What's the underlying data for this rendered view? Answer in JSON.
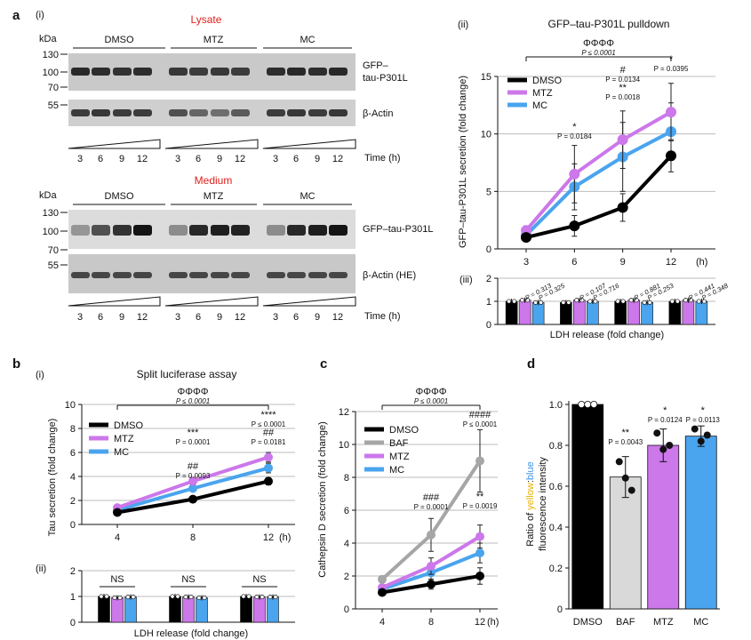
{
  "panel_letters": {
    "a": "a",
    "b": "b",
    "c": "c",
    "d": "d"
  },
  "panel_a": {
    "sub_i": "(i)",
    "sub_ii": "(ii)",
    "sub_iii": "(iii)",
    "lysate": {
      "title": "Lysate",
      "kda": "kDa",
      "markers": [
        "130",
        "100",
        "70",
        "55"
      ],
      "groups": [
        "DMSO",
        "MTZ",
        "MC"
      ],
      "labels": [
        "GFP–",
        "tau-P301L",
        "β-Actin"
      ]
    },
    "medium": {
      "title": "Medium",
      "kda": "kDa",
      "markers": [
        "130",
        "100",
        "70",
        "55"
      ],
      "groups": [
        "DMSO",
        "MTZ",
        "MC"
      ],
      "labels": [
        "GFP–tau-P301L",
        "β-Actin (HE)"
      ]
    },
    "timepoints": [
      "3",
      "6",
      "9",
      "12"
    ],
    "time_label": "Time (h)"
  },
  "chart_data": [
    {
      "type": "line",
      "id": "a_ii",
      "title": "GFP–tau-P301L pulldown",
      "xlabel": "",
      "ylabel": "GFP–tau-P301L secretion (fold change)",
      "x": [
        3,
        6,
        9,
        12
      ],
      "x_unit": "(h)",
      "ylim": [
        0,
        15
      ],
      "yticks": [
        0,
        5,
        10,
        15
      ],
      "legend": [
        "DMSO",
        "MTZ",
        "MC"
      ],
      "series": [
        {
          "name": "DMSO",
          "values": [
            1.0,
            2.0,
            3.6,
            8.1
          ],
          "errors": [
            0.3,
            0.9,
            1.2,
            1.4
          ]
        },
        {
          "name": "MTZ",
          "values": [
            1.6,
            6.5,
            9.5,
            11.9
          ],
          "errors": [
            0.4,
            2.5,
            2.5,
            2.5
          ]
        },
        {
          "name": "MC",
          "values": [
            1.2,
            5.4,
            8.0,
            10.2
          ],
          "errors": [
            0.3,
            2.0,
            3.0,
            2.5
          ]
        }
      ],
      "bracket_symbol": "ΦΦΦΦ",
      "bracket_p": "P ≤ 0.0001",
      "annotations": [
        {
          "x": 6,
          "lines": [
            "*",
            "P = 0.0184"
          ]
        },
        {
          "x": 9,
          "lines": [
            "#",
            "P = 0.0134",
            "**",
            "P = 0.0018"
          ]
        },
        {
          "x": 12,
          "lines": [
            "*",
            "P = 0.0395"
          ]
        }
      ]
    },
    {
      "type": "bar",
      "id": "a_iii",
      "xlabel": "LDH release (fold change)",
      "ylim": [
        0,
        2
      ],
      "yticks": [
        0,
        1,
        2
      ],
      "categories": [
        "3",
        "6",
        "9",
        "12"
      ],
      "series": [
        {
          "name": "DMSO",
          "values": [
            1.0,
            0.95,
            1.0,
            1.0
          ]
        },
        {
          "name": "MTZ",
          "values": [
            1.05,
            1.05,
            1.05,
            1.05
          ]
        },
        {
          "name": "MC",
          "values": [
            0.95,
            1.0,
            0.95,
            1.0
          ]
        }
      ],
      "p_labels": [
        "P = 0.313",
        "P = 0.325",
        "P = 0.107",
        "P = 0.716",
        "P = 0.881",
        "P = 0.253",
        "P = 0.441",
        "P = 0.348"
      ]
    },
    {
      "type": "line",
      "id": "b_i",
      "title": "Split luciferase assay",
      "ylabel": "Tau secretion (fold change)",
      "x": [
        4,
        8,
        12
      ],
      "x_unit": "(h)",
      "ylim": [
        0,
        10
      ],
      "yticks": [
        0,
        2,
        4,
        6,
        8,
        10
      ],
      "legend": [
        "DMSO",
        "MTZ",
        "MC"
      ],
      "series": [
        {
          "name": "DMSO",
          "values": [
            1.0,
            2.1,
            3.6
          ],
          "errors": [
            0.1,
            0.2,
            0.3
          ]
        },
        {
          "name": "MTZ",
          "values": [
            1.4,
            3.6,
            5.6
          ],
          "errors": [
            0.1,
            0.3,
            0.4
          ]
        },
        {
          "name": "MC",
          "values": [
            1.2,
            3.0,
            4.7
          ],
          "errors": [
            0.1,
            0.2,
            0.4
          ]
        }
      ],
      "bracket_symbol": "ΦΦΦΦ",
      "bracket_p": "P ≤ 0.0001",
      "annotations": [
        {
          "x": 8,
          "lines": [
            "***",
            "P = 0.0001"
          ],
          "pos": "high"
        },
        {
          "x": 8,
          "lines": [
            "##",
            "P = 0.0093"
          ],
          "pos": "low"
        },
        {
          "x": 12,
          "lines": [
            "****",
            "P ≤ 0.0001",
            "##",
            "P = 0.0181"
          ],
          "pos": "high"
        }
      ]
    },
    {
      "type": "bar",
      "id": "b_ii",
      "xlabel": "LDH release (fold change)",
      "ylim": [
        0,
        2
      ],
      "yticks": [
        0,
        1,
        2
      ],
      "categories": [
        "4",
        "8",
        "12"
      ],
      "series": [
        {
          "name": "DMSO",
          "values": [
            1.0,
            1.0,
            1.0
          ]
        },
        {
          "name": "MTZ",
          "values": [
            0.95,
            0.98,
            0.98
          ]
        },
        {
          "name": "MC",
          "values": [
            0.98,
            0.95,
            0.98
          ]
        }
      ],
      "ns_labels": [
        "NS",
        "NS",
        "NS"
      ]
    },
    {
      "type": "line",
      "id": "c",
      "ylabel": "Cathepsin D secretion (fold change)",
      "x": [
        4,
        8,
        12
      ],
      "x_unit": "(h)",
      "ylim": [
        0,
        12
      ],
      "yticks": [
        0,
        2,
        4,
        6,
        8,
        10,
        12
      ],
      "legend": [
        "DMSO",
        "BAF",
        "MTZ",
        "MC"
      ],
      "series": [
        {
          "name": "DMSO",
          "values": [
            1.0,
            1.5,
            2.0
          ],
          "errors": [
            0.1,
            0.3,
            0.5
          ]
        },
        {
          "name": "BAF",
          "values": [
            1.8,
            4.5,
            9.0
          ],
          "errors": [
            0.2,
            1.0,
            1.9
          ]
        },
        {
          "name": "MTZ",
          "values": [
            1.3,
            2.6,
            4.4
          ],
          "errors": [
            0.1,
            0.5,
            0.7
          ]
        },
        {
          "name": "MC",
          "values": [
            1.2,
            2.2,
            3.4
          ],
          "errors": [
            0.1,
            0.4,
            0.6
          ]
        }
      ],
      "bracket_symbol": "ΦΦΦΦ",
      "bracket_p": "P ≤ 0.0001",
      "annotations": [
        {
          "x": 8,
          "lines": [
            "###",
            "P = 0.0001"
          ]
        },
        {
          "x": 12,
          "lines": [
            "####",
            "P ≤ 0.0001"
          ],
          "pos": "high"
        },
        {
          "x": 12,
          "lines": [
            "**",
            "P = 0.0019"
          ],
          "pos": "low"
        }
      ]
    },
    {
      "type": "bar",
      "id": "d",
      "ylabel_parts": [
        "Ratio of ",
        "yellow",
        ":",
        "blue",
        "fluorescence intensity"
      ],
      "categories": [
        "DMSO",
        "BAF",
        "MTZ",
        "MC"
      ],
      "values": [
        1.0,
        0.645,
        0.8,
        0.845
      ],
      "errors": [
        0.0,
        0.1,
        0.08,
        0.05
      ],
      "points": [
        [
          1.0,
          1.0,
          1.0
        ],
        [
          0.72,
          0.64,
          0.58
        ],
        [
          0.86,
          0.78,
          0.8
        ],
        [
          0.88,
          0.82,
          0.85
        ]
      ],
      "ylim": [
        0,
        1.0
      ],
      "yticks": [
        0,
        0.2,
        0.4,
        0.6,
        0.8,
        1.0
      ],
      "annotations": [
        {
          "cat": "BAF",
          "lines": [
            "**",
            "P = 0.0043"
          ]
        },
        {
          "cat": "MTZ",
          "lines": [
            "*",
            "P = 0.0124"
          ]
        },
        {
          "cat": "MC",
          "lines": [
            "*",
            "P = 0.0113"
          ]
        }
      ]
    }
  ],
  "colors": {
    "DMSO": "#000000",
    "MTZ": "#cc77ea",
    "MC": "#4aa4ee",
    "BAF": "#a6a6a6",
    "BAF_bar": "#d9d9d9",
    "lysate_red": "#e0201b",
    "yellow": "#e9b100",
    "blue": "#3f93e6"
  }
}
